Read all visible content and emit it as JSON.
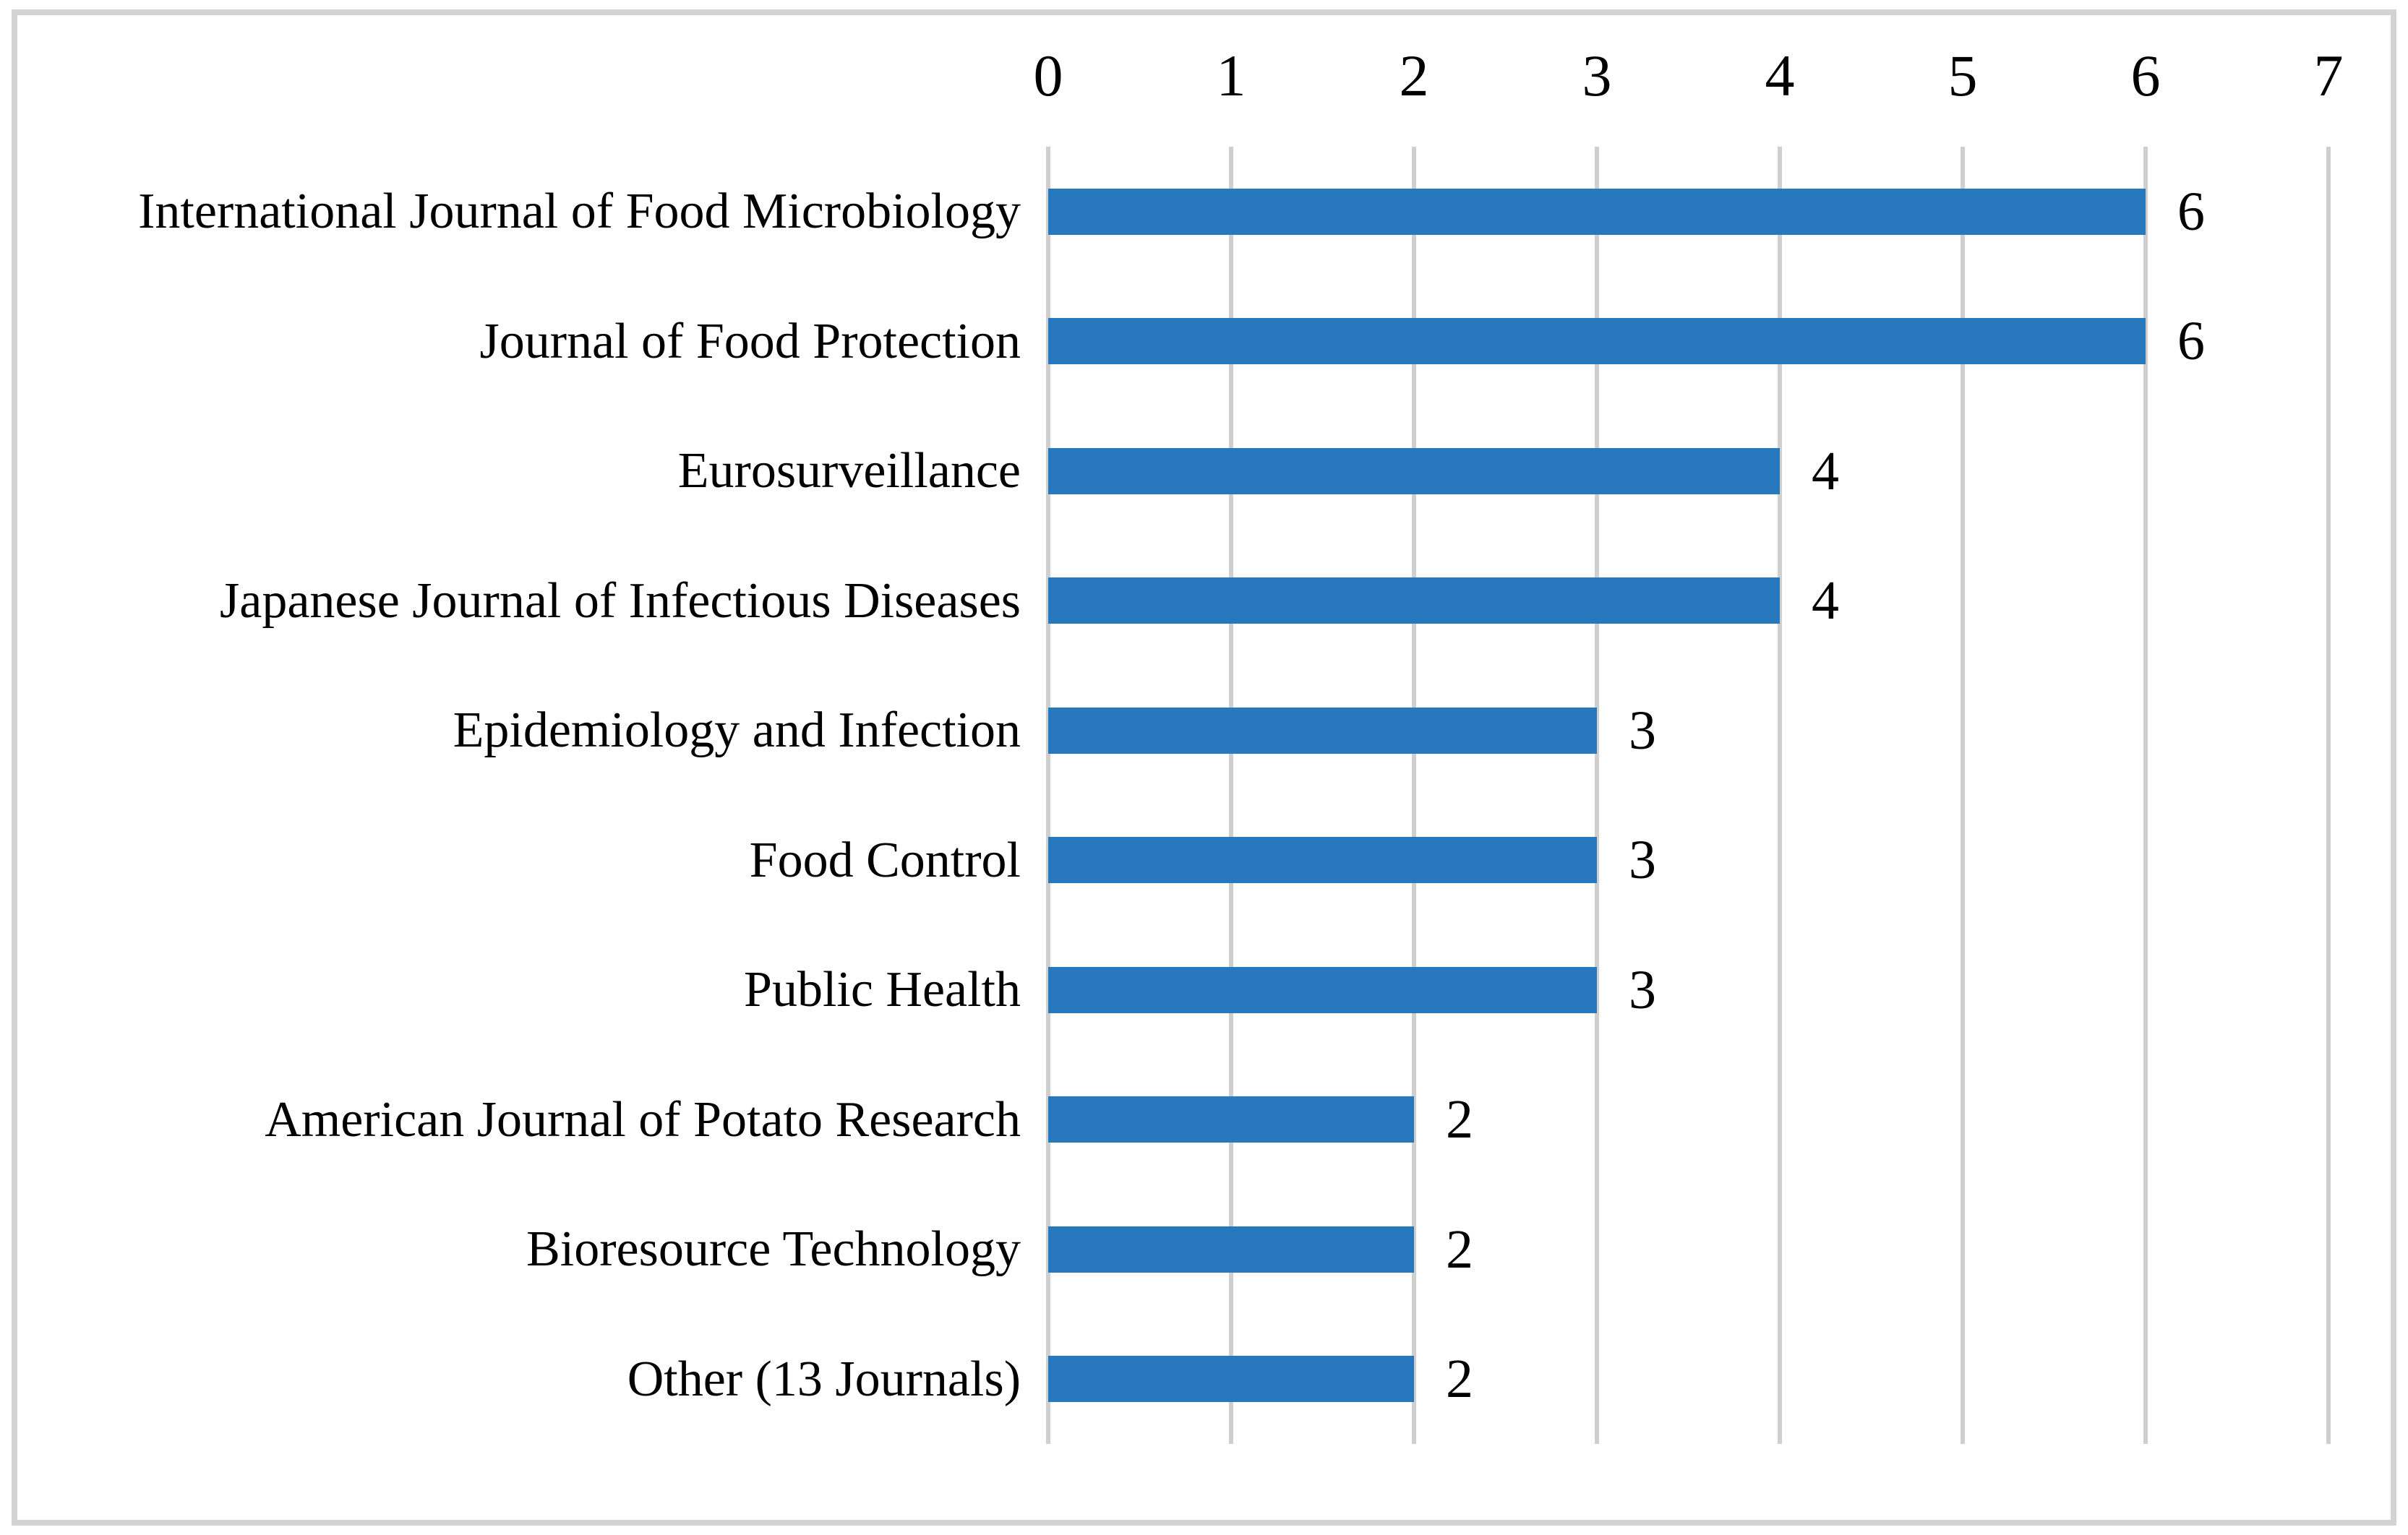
{
  "figure": {
    "title": "",
    "background_color": "#ffffff",
    "frame_border_color": "#d3d3d3"
  },
  "chart_data": {
    "type": "bar",
    "orientation": "horizontal",
    "title": "",
    "xlabel": "",
    "ylabel": "",
    "axis_position": "top",
    "xlim": [
      0,
      7
    ],
    "x_ticks": [
      "0",
      "1",
      "2",
      "3",
      "4",
      "5",
      "6",
      "7"
    ],
    "grid": "vertical",
    "legend": "none",
    "bar_color": "#2878be",
    "gridline_color": "#cfcfcf",
    "text_color": "#000000",
    "categories": [
      "International Journal of Food Microbiology",
      "Journal of Food Protection",
      "Eurosurveillance",
      "Japanese Journal of Infectious Diseases",
      "Epidemiology and Infection",
      "Food Control",
      "Public Health",
      "American Journal of Potato Research",
      "Bioresource Technology",
      "Other (13 Journals)"
    ],
    "values": [
      6,
      6,
      4,
      4,
      3,
      3,
      3,
      2,
      2,
      2
    ],
    "value_labels": [
      "6",
      "6",
      "4",
      "4",
      "3",
      "3",
      "3",
      "2",
      "2",
      "2"
    ]
  }
}
